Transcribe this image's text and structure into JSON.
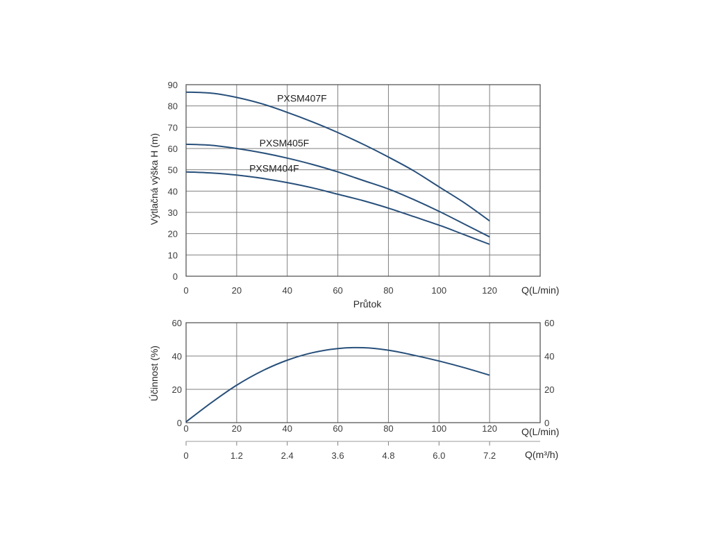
{
  "chart_data": [
    {
      "type": "line",
      "ylabel": "Výtlačná výška H (m)",
      "xlabel": "Průtok",
      "x_unit_label": "Q(L/min)",
      "xlim": [
        0,
        140
      ],
      "ylim": [
        0,
        90
      ],
      "x_ticks": [
        0,
        20,
        40,
        60,
        80,
        100,
        120
      ],
      "y_ticks": [
        0,
        10,
        20,
        30,
        40,
        50,
        60,
        70,
        80,
        90
      ],
      "grid": true,
      "colors": {
        "curve": "#274f7a",
        "grid": "#7f7f7f"
      },
      "series": [
        {
          "name": "PXSM407F",
          "x": [
            0,
            10,
            20,
            30,
            40,
            50,
            60,
            70,
            80,
            90,
            100,
            110,
            120
          ],
          "y": [
            86.5,
            86,
            84,
            81,
            77,
            72.5,
            67.5,
            62,
            56,
            49.5,
            42,
            34.5,
            26
          ]
        },
        {
          "name": "PXSM405F",
          "x": [
            0,
            10,
            20,
            30,
            40,
            50,
            60,
            70,
            80,
            90,
            100,
            110,
            120
          ],
          "y": [
            62,
            61.5,
            60,
            58,
            55.5,
            52.5,
            49,
            45,
            41,
            36,
            30.5,
            24.5,
            18.5
          ]
        },
        {
          "name": "PXSM404F",
          "x": [
            0,
            10,
            20,
            30,
            40,
            50,
            60,
            70,
            80,
            90,
            100,
            110,
            120
          ],
          "y": [
            49,
            48.5,
            47.5,
            46,
            44,
            41.5,
            38.5,
            35.5,
            32,
            28,
            24,
            19.5,
            15
          ]
        }
      ]
    },
    {
      "type": "line",
      "ylabel": "Účinnost (%)",
      "x_unit_label": "Q(L/min)",
      "x2_unit_label": "Q(m³/h)",
      "xlim": [
        0,
        140
      ],
      "ylim": [
        0,
        60
      ],
      "x_ticks": [
        0,
        20,
        40,
        60,
        80,
        100,
        120
      ],
      "x2_ticks": [
        "0",
        "1.2",
        "2.4",
        "3.6",
        "4.8",
        "6.0",
        "7.2"
      ],
      "y_ticks": [
        0,
        20,
        40,
        60
      ],
      "y_right_ticks": [
        0,
        20,
        40,
        60
      ],
      "grid": true,
      "series": [
        {
          "x": [
            0,
            10,
            20,
            30,
            40,
            50,
            60,
            70,
            80,
            90,
            100,
            110,
            120
          ],
          "y": [
            0.5,
            12,
            22.5,
            31,
            37.5,
            42,
            44.5,
            45,
            43.5,
            40.5,
            37,
            33,
            28.5
          ]
        }
      ]
    }
  ]
}
